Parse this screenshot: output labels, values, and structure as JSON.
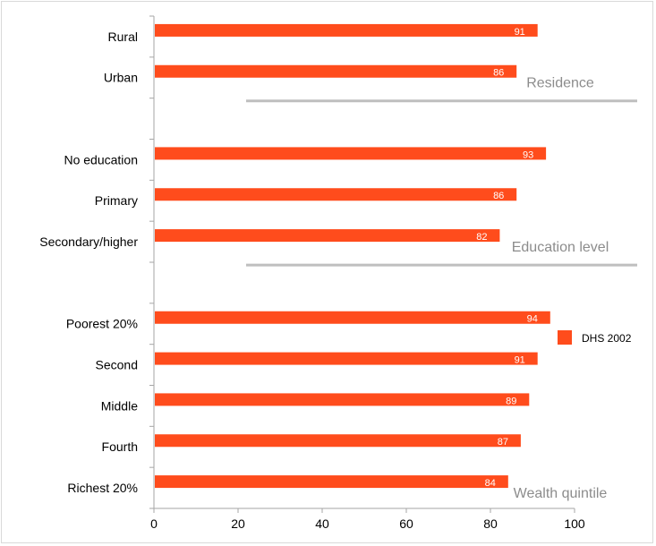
{
  "chart_data": {
    "type": "bar",
    "orientation": "horizontal",
    "categories": [
      "Rural",
      "Urban",
      "No education",
      "Primary",
      "Secondary/higher",
      "Poorest 20%",
      "Second",
      "Middle",
      "Fourth",
      "Richest 20%"
    ],
    "series": [
      {
        "name": "DHS 2002",
        "values": [
          91,
          86,
          93,
          86,
          82,
          94,
          91,
          89,
          87,
          84
        ]
      }
    ],
    "groups": [
      {
        "label": "Residence",
        "categories": [
          "Rural",
          "Urban"
        ]
      },
      {
        "label": "Education level",
        "categories": [
          "No education",
          "Primary",
          "Secondary/higher"
        ]
      },
      {
        "label": "Wealth quintile",
        "categories": [
          "Poorest 20%",
          "Second",
          "Middle",
          "Fourth",
          "Richest 20%"
        ]
      }
    ],
    "x_ticks": [
      0,
      20,
      40,
      60,
      80,
      100
    ],
    "xlim": [
      0,
      100
    ],
    "grid": false,
    "legend_position": "right",
    "colors": {
      "bar": "#ff4c1c",
      "group_line": "#bfbfbf",
      "group_text": "#8c8c8c",
      "axis": "#a6a6a6"
    }
  }
}
